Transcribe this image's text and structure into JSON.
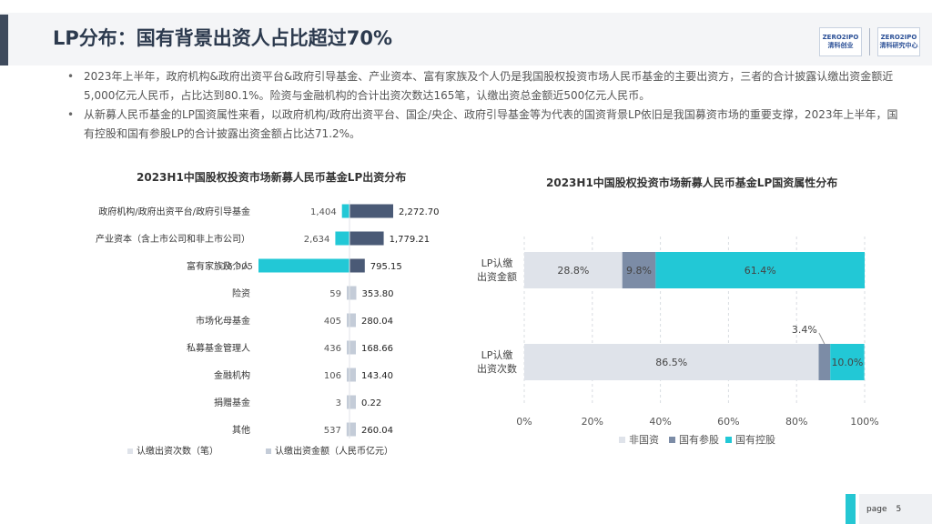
{
  "title": "LP分布：国有背景出资人占比超过70%",
  "logos": [
    {
      "top": "ZERO2IPO",
      "bottom": "清科创业"
    },
    {
      "top": "ZERO2IPO",
      "bottom": "清科研究中心"
    }
  ],
  "bullets": [
    "2023年上半年，政府机构&政府出资平台&政府引导基金、产业资本、富有家族及个人仍是我国股权投资市场人民币基金的主要出资方，三者的合计披露认缴出资金额近5,000亿元人民币，占比达到80.1%。险资与金融机构的合计出资次数达165笔，认缴出资总金额近500亿元人民币。",
    "从新募人民币基金的LP国资属性来看，以政府机构/政府出资平台、国企/央企、政府引导基金等为代表的国资背景LP依旧是我国募资市场的重要支撑，2023年上半年，国有控股和国有参股LP的合计披露出资金额占比达71.2%。"
  ],
  "colors": {
    "count": "#22c8d6",
    "amount": "#4a5a76",
    "light": "#c4ccd8",
    "non_state": "#dfe3ea",
    "state_part": "#7c8ca6",
    "state_ctrl": "#22c8d6"
  },
  "chart_data": [
    {
      "type": "bar",
      "title": "2023H1中国股权投资市场新募人民币基金LP出资分布",
      "categories": [
        "政府机构/政府出资平台/政府引导基金",
        "产业资本（含上市公司和非上市公司）",
        "富有家族及个人",
        "险资",
        "市场化母基金",
        "私募基金管理人",
        "金融机构",
        "捐赠基金",
        "其他"
      ],
      "series": [
        {
          "name": "认缴出资次数（笔）",
          "values": [
            1404,
            2634,
            16905,
            59,
            405,
            436,
            106,
            3,
            537
          ],
          "labels": [
            "1,404",
            "2,634",
            "16,905",
            "59",
            "405",
            "436",
            "106",
            "3",
            "537"
          ]
        },
        {
          "name": "认缴出资金额（人民币亿元）",
          "values": [
            2272.7,
            1779.21,
            795.15,
            353.8,
            280.04,
            168.66,
            143.4,
            0.22,
            260.04
          ],
          "labels": [
            "2,272.70",
            "1,779.21",
            "795.15",
            "353.80",
            "280.04",
            "168.66",
            "143.40",
            "0.22",
            "260.04"
          ]
        }
      ]
    },
    {
      "type": "bar",
      "orientation": "horizontal-stacked",
      "title": "2023H1中国股权投资市场新募人民币基金LP国资属性分布",
      "categories": [
        "LP认缴出资金额",
        "LP认缴出资次数"
      ],
      "category_lines": [
        [
          "LP认缴",
          "出资金额"
        ],
        [
          "LP认缴",
          "出资次数"
        ]
      ],
      "series": [
        {
          "name": "非国资",
          "values": [
            28.8,
            86.5
          ],
          "labels": [
            "28.8%",
            "86.5%"
          ]
        },
        {
          "name": "国有参股",
          "values": [
            9.8,
            3.4
          ],
          "labels": [
            "9.8%",
            "3.4%"
          ]
        },
        {
          "name": "国有控股",
          "values": [
            61.4,
            10.0
          ],
          "labels": [
            "61.4%",
            "10.0%"
          ]
        }
      ],
      "xlim": [
        0,
        100
      ],
      "ticks": [
        "0%",
        "20%",
        "40%",
        "60%",
        "80%",
        "100%"
      ],
      "legend": "bottom"
    }
  ],
  "footer": {
    "label": "page",
    "number": "5"
  }
}
